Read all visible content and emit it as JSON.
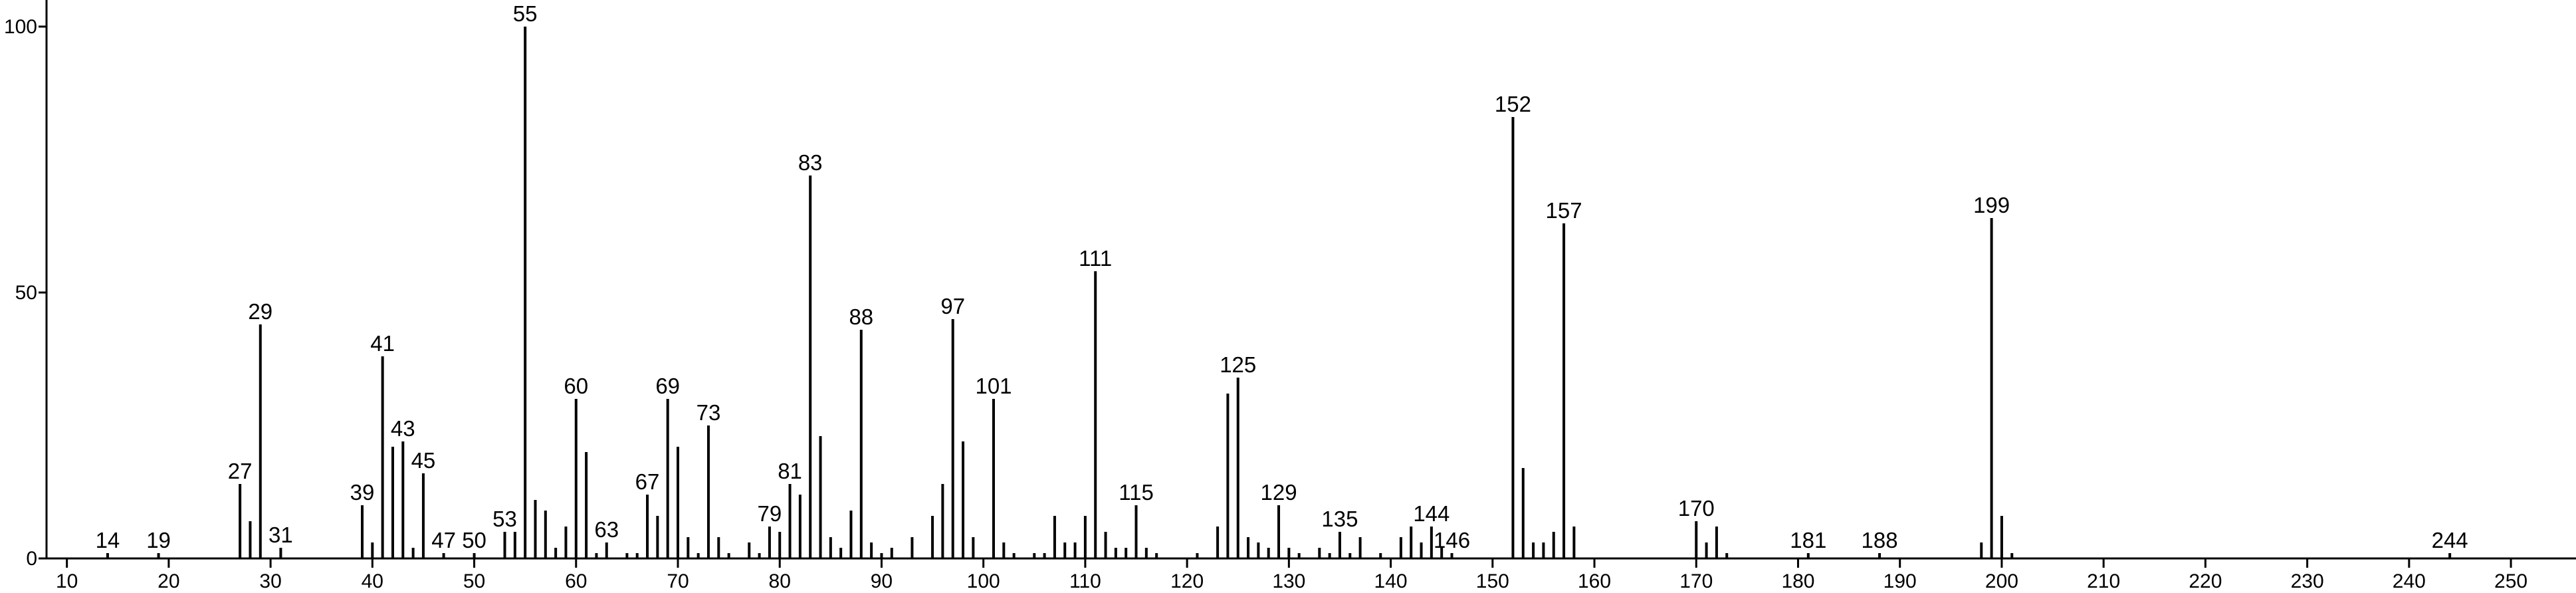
{
  "chart_data": {
    "type": "stick",
    "x": [
      14,
      19,
      27,
      28,
      29,
      31,
      39,
      40,
      41,
      42,
      43,
      44,
      45,
      47,
      50,
      53,
      54,
      55,
      56,
      57,
      58,
      59,
      60,
      61,
      62,
      63,
      65,
      66,
      67,
      68,
      69,
      70,
      71,
      72,
      73,
      74,
      75,
      77,
      78,
      79,
      80,
      81,
      82,
      83,
      84,
      85,
      86,
      87,
      88,
      89,
      90,
      91,
      93,
      95,
      96,
      97,
      98,
      99,
      101,
      102,
      103,
      105,
      106,
      107,
      108,
      109,
      110,
      111,
      112,
      113,
      114,
      115,
      116,
      117,
      121,
      123,
      124,
      125,
      126,
      127,
      128,
      129,
      130,
      131,
      133,
      134,
      135,
      136,
      137,
      139,
      141,
      142,
      143,
      144,
      145,
      146,
      152,
      153,
      154,
      155,
      156,
      157,
      158,
      170,
      171,
      172,
      173,
      181,
      188,
      198,
      199,
      200,
      201,
      244
    ],
    "values": [
      1,
      1,
      14,
      7,
      44,
      2,
      10,
      3,
      38,
      21,
      22,
      2,
      16,
      1,
      1,
      5,
      5,
      100,
      11,
      9,
      2,
      6,
      30,
      20,
      1,
      3,
      1,
      1,
      12,
      8,
      30,
      21,
      4,
      1,
      25,
      4,
      1,
      3,
      1,
      6,
      5,
      14,
      12,
      72,
      23,
      4,
      2,
      9,
      43,
      3,
      1,
      2,
      4,
      8,
      14,
      45,
      22,
      4,
      30,
      3,
      1,
      1,
      1,
      8,
      3,
      3,
      8,
      54,
      5,
      2,
      2,
      10,
      2,
      1,
      1,
      6,
      31,
      34,
      4,
      3,
      2,
      10,
      2,
      1,
      2,
      1,
      5,
      1,
      4,
      1,
      4,
      6,
      3,
      6,
      2,
      1,
      83,
      17,
      3,
      3,
      5,
      63,
      6,
      7,
      3,
      6,
      1,
      1,
      1,
      3,
      64,
      8,
      1,
      1
    ],
    "peak_labels": [
      14,
      19,
      27,
      29,
      31,
      39,
      41,
      43,
      45,
      47,
      50,
      53,
      55,
      60,
      63,
      67,
      69,
      73,
      79,
      81,
      83,
      88,
      97,
      101,
      111,
      115,
      125,
      129,
      135,
      144,
      146,
      152,
      157,
      170,
      181,
      188,
      199,
      244
    ],
    "color": "#000000",
    "xlim": [
      8,
      256
    ],
    "ylim": [
      0,
      105
    ],
    "xticks": [
      10,
      20,
      30,
      40,
      50,
      60,
      70,
      80,
      90,
      100,
      110,
      120,
      130,
      140,
      150,
      160,
      170,
      180,
      190,
      200,
      210,
      220,
      230,
      240,
      250
    ],
    "yticks": [
      0,
      50,
      100
    ]
  }
}
